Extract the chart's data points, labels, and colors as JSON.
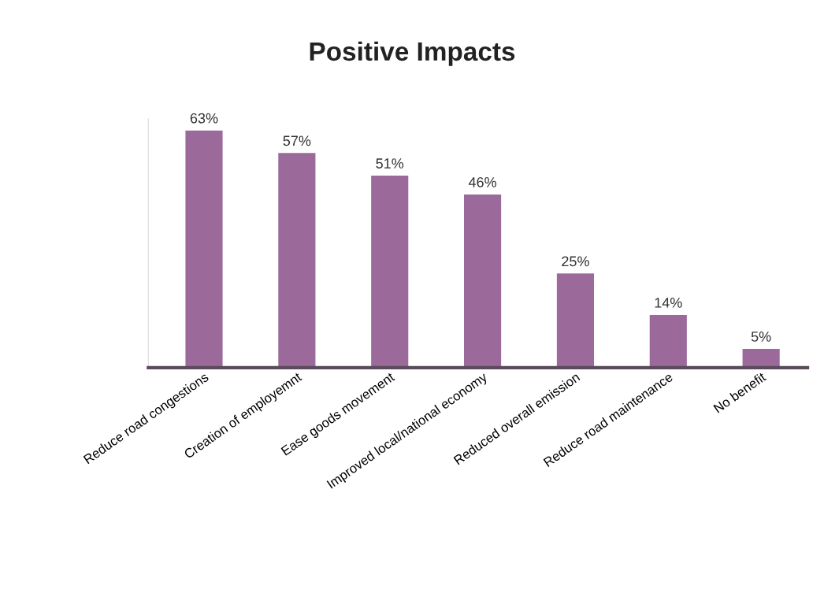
{
  "chart_data": {
    "type": "bar",
    "title": "Positive Impacts",
    "categories": [
      "Reduce road congestions",
      "Creation of employemnt",
      "Ease goods movement",
      "Improved local/national economy",
      "Reduced overall emission",
      "Reduce road maintenance",
      "No benefit"
    ],
    "values": [
      63,
      57,
      51,
      46,
      25,
      14,
      5
    ],
    "value_labels": [
      "63%",
      "57%",
      "51%",
      "46%",
      "25%",
      "14%",
      "5%"
    ],
    "color": "#9b6a9b",
    "tick_labels": "x",
    "grid": false,
    "legend": false
  }
}
